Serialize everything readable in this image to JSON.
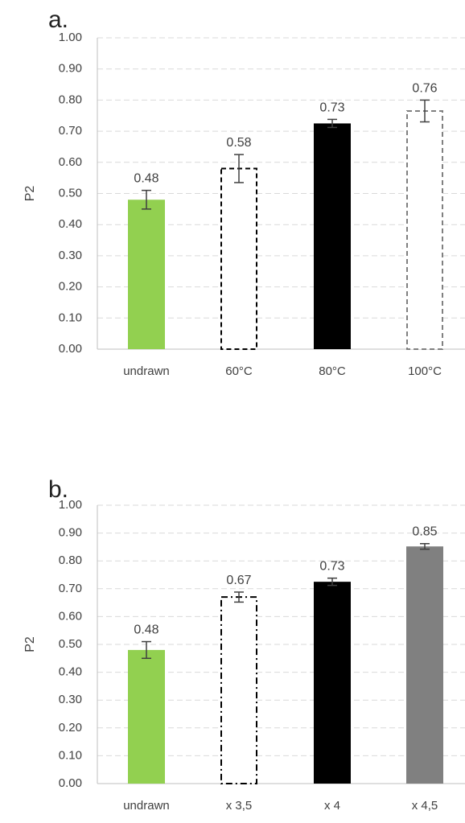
{
  "chart_data": [
    {
      "type": "bar",
      "panel_label": "a.",
      "ylabel": "P2",
      "ylim": [
        0,
        1.0
      ],
      "yticks": [
        "0.00",
        "0.10",
        "0.20",
        "0.30",
        "0.40",
        "0.50",
        "0.60",
        "0.70",
        "0.80",
        "0.90",
        "1.00"
      ],
      "grid": true,
      "categories": [
        "undrawn",
        "60°C",
        "80°C",
        "100°C"
      ],
      "values": [
        0.48,
        0.58,
        0.725,
        0.765
      ],
      "errors": [
        0.03,
        0.045,
        0.013,
        0.035
      ],
      "data_labels": [
        "0.48",
        "0.58",
        "0.73",
        "0.76"
      ],
      "bar_styles": [
        {
          "fill": "#92d050",
          "stroke": "none",
          "dash": "none"
        },
        {
          "fill": "#ffffff",
          "stroke": "#000000",
          "dash": "dashed"
        },
        {
          "fill": "#000000",
          "stroke": "none",
          "dash": "none"
        },
        {
          "fill": "#ffffff",
          "stroke": "#808080",
          "dash": "dashed"
        }
      ]
    },
    {
      "type": "bar",
      "panel_label": "b.",
      "ylabel": "P2",
      "ylim": [
        0,
        1.0
      ],
      "yticks": [
        "0.00",
        "0.10",
        "0.20",
        "0.30",
        "0.40",
        "0.50",
        "0.60",
        "0.70",
        "0.80",
        "0.90",
        "1.00"
      ],
      "grid": true,
      "categories": [
        "undrawn",
        "x 3,5",
        "x 4",
        "x 4,5"
      ],
      "values": [
        0.48,
        0.67,
        0.725,
        0.852
      ],
      "errors": [
        0.03,
        0.018,
        0.013,
        0.01
      ],
      "data_labels": [
        "0.48",
        "0.67",
        "0.73",
        "0.85"
      ],
      "bar_styles": [
        {
          "fill": "#92d050",
          "stroke": "none",
          "dash": "none"
        },
        {
          "fill": "#ffffff",
          "stroke": "#000000",
          "dash": "dashdot"
        },
        {
          "fill": "#000000",
          "stroke": "none",
          "dash": "none"
        },
        {
          "fill": "#808080",
          "stroke": "none",
          "dash": "none"
        }
      ]
    }
  ]
}
